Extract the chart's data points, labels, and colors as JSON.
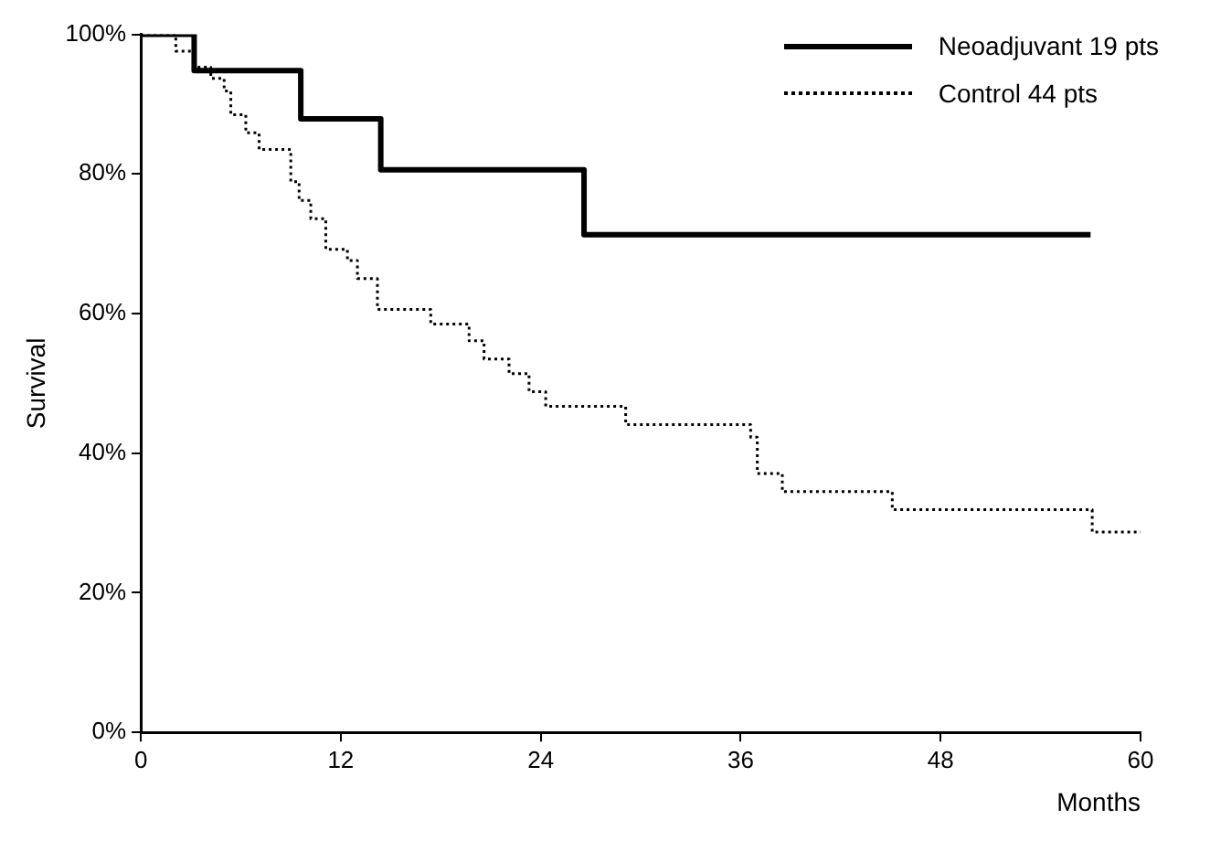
{
  "chart_data": {
    "type": "step",
    "xlabel": "Months",
    "ylabel": "Survival",
    "xlim": [
      0,
      60
    ],
    "xticks": [
      0,
      12,
      24,
      36,
      48,
      60
    ],
    "ylim": [
      0,
      100
    ],
    "yticks": [
      {
        "value": 0,
        "label": "0%"
      },
      {
        "value": 20,
        "label": "20%"
      },
      {
        "value": 40,
        "label": "40%"
      },
      {
        "value": 60,
        "label": "60%"
      },
      {
        "value": 80,
        "label": "80%"
      },
      {
        "value": 100,
        "label": "100%"
      }
    ],
    "grid": false,
    "legend": "top right",
    "marker": "none",
    "series": [
      {
        "name": "Neoadjuvant 19 pts",
        "color": "#000000",
        "line_style": "solid",
        "x": [
          0,
          3.2,
          9.6,
          14.4,
          26.6,
          57
        ],
        "values": [
          100,
          94.8,
          87.9,
          80.6,
          71.3,
          71.3
        ]
      },
      {
        "name": "Control 44 pts",
        "color": "#000000",
        "line_style": "dotted",
        "x": [
          0,
          2.1,
          3.2,
          4.2,
          5,
          5.4,
          6.3,
          7.1,
          9,
          9.5,
          10.2,
          11.1,
          12.4,
          13,
          14.2,
          17.4,
          19.7,
          20.6,
          22.1,
          23.3,
          24.3,
          29.1,
          36.6,
          37,
          38.5,
          45.1,
          57.1,
          60
        ],
        "values": [
          100,
          97.6,
          95.3,
          93.7,
          91.9,
          88.5,
          85.9,
          83.5,
          78.9,
          76.2,
          73.6,
          69.2,
          67.6,
          65,
          60.6,
          58.5,
          56.1,
          53.5,
          51.4,
          48.8,
          46.7,
          44.1,
          42.3,
          37.1,
          34.5,
          31.9,
          28.7,
          28.7
        ]
      }
    ]
  }
}
